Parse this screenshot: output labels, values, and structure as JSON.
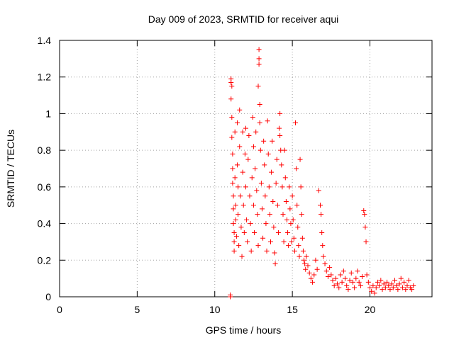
{
  "chart_data": {
    "type": "scatter",
    "title": "Day 009 of 2023, SRMTID for receiver aqui",
    "xlabel": "GPS time / hours",
    "ylabel": "SRMTID / TECUs",
    "xlim": [
      0,
      24
    ],
    "ylim": [
      0,
      1.4
    ],
    "xticks": [
      0,
      5,
      10,
      15,
      20
    ],
    "yticks": [
      0,
      0.2,
      0.4,
      0.6,
      0.8,
      1,
      1.2,
      1.4
    ],
    "ytick_labels": [
      "0",
      "0.2",
      "0.4",
      "0.6",
      "0.8",
      "1",
      "1.2",
      "1.4"
    ],
    "grid": true,
    "marker": "+",
    "color": "#ff0000",
    "series": [
      {
        "name": "SRMTID",
        "points": [
          [
            11.0,
            0.0
          ],
          [
            11.0,
            0.01
          ],
          [
            11.05,
            1.19
          ],
          [
            11.05,
            1.17
          ],
          [
            11.05,
            1.08
          ],
          [
            11.1,
            1.15
          ],
          [
            11.1,
            0.98
          ],
          [
            11.1,
            0.87
          ],
          [
            11.15,
            0.78
          ],
          [
            11.15,
            0.7
          ],
          [
            11.15,
            0.62
          ],
          [
            11.2,
            0.55
          ],
          [
            11.2,
            0.48
          ],
          [
            11.2,
            0.4
          ],
          [
            11.25,
            0.35
          ],
          [
            11.25,
            0.3
          ],
          [
            11.25,
            0.25
          ],
          [
            11.3,
            0.9
          ],
          [
            11.3,
            0.65
          ],
          [
            11.35,
            0.5
          ],
          [
            11.35,
            0.42
          ],
          [
            11.4,
            0.33
          ],
          [
            11.45,
            0.95
          ],
          [
            11.45,
            0.72
          ],
          [
            11.5,
            0.6
          ],
          [
            11.5,
            0.45
          ],
          [
            11.55,
            0.28
          ],
          [
            11.6,
            1.02
          ],
          [
            11.6,
            0.82
          ],
          [
            11.65,
            0.55
          ],
          [
            11.7,
            0.38
          ],
          [
            11.75,
            0.22
          ],
          [
            11.8,
            0.9
          ],
          [
            11.8,
            0.68
          ],
          [
            11.85,
            0.5
          ],
          [
            11.9,
            0.35
          ],
          [
            11.95,
            0.78
          ],
          [
            12.0,
            0.92
          ],
          [
            12.0,
            0.6
          ],
          [
            12.05,
            0.42
          ],
          [
            12.1,
            0.3
          ],
          [
            12.15,
            0.75
          ],
          [
            12.2,
            0.88
          ],
          [
            12.25,
            0.55
          ],
          [
            12.3,
            0.4
          ],
          [
            12.35,
            0.25
          ],
          [
            12.4,
            0.65
          ],
          [
            12.45,
            0.98
          ],
          [
            12.5,
            0.82
          ],
          [
            12.5,
            0.5
          ],
          [
            12.55,
            0.35
          ],
          [
            12.6,
            0.7
          ],
          [
            12.65,
            0.9
          ],
          [
            12.7,
            0.58
          ],
          [
            12.75,
            0.45
          ],
          [
            12.8,
            0.28
          ],
          [
            12.8,
            1.15
          ],
          [
            12.85,
            1.35
          ],
          [
            12.85,
            1.3
          ],
          [
            12.85,
            1.27
          ],
          [
            12.9,
            1.05
          ],
          [
            12.9,
            0.95
          ],
          [
            12.95,
            0.8
          ],
          [
            13.0,
            0.62
          ],
          [
            13.05,
            0.48
          ],
          [
            13.1,
            0.32
          ],
          [
            13.15,
            0.85
          ],
          [
            13.2,
            0.72
          ],
          [
            13.25,
            0.55
          ],
          [
            13.3,
            0.4
          ],
          [
            13.35,
            0.25
          ],
          [
            13.4,
            0.96
          ],
          [
            13.45,
            0.78
          ],
          [
            13.5,
            0.6
          ],
          [
            13.55,
            0.45
          ],
          [
            13.6,
            0.3
          ],
          [
            13.65,
            0.68
          ],
          [
            13.7,
            0.85
          ],
          [
            13.75,
            0.52
          ],
          [
            13.8,
            0.38
          ],
          [
            13.85,
            0.24
          ],
          [
            13.9,
            0.18
          ],
          [
            13.95,
            0.62
          ],
          [
            14.0,
            0.75
          ],
          [
            14.05,
            0.5
          ],
          [
            14.1,
            0.35
          ],
          [
            14.15,
            0.92
          ],
          [
            14.2,
            1.0
          ],
          [
            14.2,
            0.88
          ],
          [
            14.25,
            0.8
          ],
          [
            14.3,
            0.72
          ],
          [
            14.35,
            0.6
          ],
          [
            14.4,
            0.45
          ],
          [
            14.45,
            0.3
          ],
          [
            14.5,
            0.8
          ],
          [
            14.55,
            0.65
          ],
          [
            14.6,
            0.52
          ],
          [
            14.65,
            0.42
          ],
          [
            14.7,
            0.35
          ],
          [
            14.75,
            0.28
          ],
          [
            14.8,
            0.6
          ],
          [
            14.85,
            0.48
          ],
          [
            14.9,
            0.4
          ],
          [
            14.95,
            0.3
          ],
          [
            15.0,
            0.55
          ],
          [
            15.05,
            0.42
          ],
          [
            15.1,
            0.32
          ],
          [
            15.15,
            0.25
          ],
          [
            15.2,
            0.95
          ],
          [
            15.25,
            0.7
          ],
          [
            15.3,
            0.5
          ],
          [
            15.35,
            0.38
          ],
          [
            15.4,
            0.28
          ],
          [
            15.45,
            0.22
          ],
          [
            15.5,
            0.75
          ],
          [
            15.55,
            0.6
          ],
          [
            15.6,
            0.45
          ],
          [
            15.65,
            0.32
          ],
          [
            15.7,
            0.25
          ],
          [
            15.75,
            0.2
          ],
          [
            15.8,
            0.18
          ],
          [
            15.85,
            0.15
          ],
          [
            15.9,
            0.22
          ],
          [
            16.0,
            0.17
          ],
          [
            16.1,
            0.13
          ],
          [
            16.2,
            0.1
          ],
          [
            16.3,
            0.08
          ],
          [
            16.4,
            0.12
          ],
          [
            16.5,
            0.2
          ],
          [
            16.6,
            0.15
          ],
          [
            16.7,
            0.58
          ],
          [
            16.8,
            0.5
          ],
          [
            16.85,
            0.45
          ],
          [
            16.9,
            0.35
          ],
          [
            16.95,
            0.28
          ],
          [
            17.0,
            0.22
          ],
          [
            17.1,
            0.18
          ],
          [
            17.2,
            0.14
          ],
          [
            17.3,
            0.11
          ],
          [
            17.4,
            0.16
          ],
          [
            17.5,
            0.12
          ],
          [
            17.6,
            0.09
          ],
          [
            17.7,
            0.06
          ],
          [
            17.8,
            0.1
          ],
          [
            17.9,
            0.07
          ],
          [
            18.0,
            0.05
          ],
          [
            18.1,
            0.12
          ],
          [
            18.2,
            0.08
          ],
          [
            18.3,
            0.14
          ],
          [
            18.4,
            0.1
          ],
          [
            18.5,
            0.06
          ],
          [
            18.6,
            0.04
          ],
          [
            18.7,
            0.09
          ],
          [
            18.8,
            0.13
          ],
          [
            18.9,
            0.08
          ],
          [
            19.0,
            0.05
          ],
          [
            19.1,
            0.1
          ],
          [
            19.2,
            0.14
          ],
          [
            19.3,
            0.08
          ],
          [
            19.4,
            0.06
          ],
          [
            19.5,
            0.11
          ],
          [
            19.6,
            0.47
          ],
          [
            19.65,
            0.45
          ],
          [
            19.7,
            0.38
          ],
          [
            19.75,
            0.3
          ],
          [
            19.8,
            0.12
          ],
          [
            19.9,
            0.08
          ],
          [
            20.0,
            0.05
          ],
          [
            20.1,
            0.03
          ],
          [
            20.2,
            0.06
          ],
          [
            20.3,
            0.02
          ],
          [
            20.4,
            0.05
          ],
          [
            20.5,
            0.08
          ],
          [
            20.6,
            0.06
          ],
          [
            20.7,
            0.09
          ],
          [
            20.8,
            0.04
          ],
          [
            20.9,
            0.07
          ],
          [
            21.0,
            0.05
          ],
          [
            21.1,
            0.08
          ],
          [
            21.2,
            0.06
          ],
          [
            21.3,
            0.04
          ],
          [
            21.4,
            0.07
          ],
          [
            21.5,
            0.05
          ],
          [
            21.6,
            0.09
          ],
          [
            21.7,
            0.06
          ],
          [
            21.8,
            0.04
          ],
          [
            21.9,
            0.07
          ],
          [
            22.0,
            0.1
          ],
          [
            22.1,
            0.05
          ],
          [
            22.2,
            0.08
          ],
          [
            22.3,
            0.04
          ],
          [
            22.4,
            0.06
          ],
          [
            22.5,
            0.09
          ],
          [
            22.6,
            0.05
          ],
          [
            22.7,
            0.04
          ],
          [
            22.8,
            0.06
          ]
        ]
      }
    ]
  }
}
